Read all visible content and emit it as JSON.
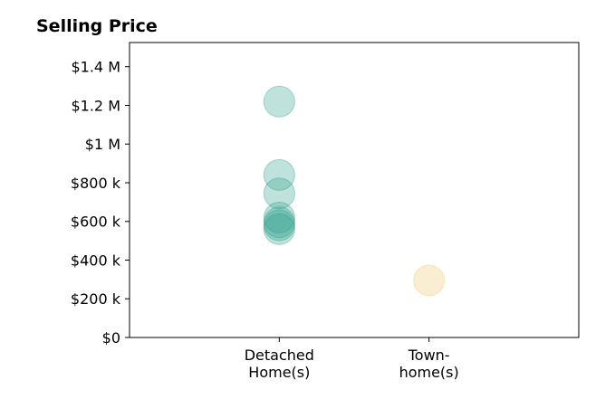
{
  "chart_data": {
    "type": "scatter",
    "title": "Selling Price",
    "xlabel": "",
    "ylabel": "",
    "categories": [
      [
        "Detached",
        "Home(s)"
      ],
      [
        "Town-",
        "home(s)"
      ]
    ],
    "ylim": [
      0,
      1525000
    ],
    "xlim": [
      -1,
      2
    ],
    "yticks": [
      0,
      200000,
      400000,
      600000,
      800000,
      1000000,
      1200000,
      1400000
    ],
    "ytick_labels": [
      "$0",
      "$200 k",
      "$400 k",
      "$600 k",
      "$800 k",
      "$1 M",
      "$1.2 M",
      "$1.4 M"
    ],
    "grid": false,
    "legend": "none",
    "series": [
      {
        "category_index": 0,
        "color": "#2E9E8C",
        "opacity": 0.3,
        "values": [
          1220000,
          840000,
          745000,
          620000,
          595000,
          580000,
          560000
        ]
      },
      {
        "category_index": 1,
        "color": "#F2D69B",
        "opacity": 0.45,
        "values": [
          295000
        ]
      }
    ]
  }
}
